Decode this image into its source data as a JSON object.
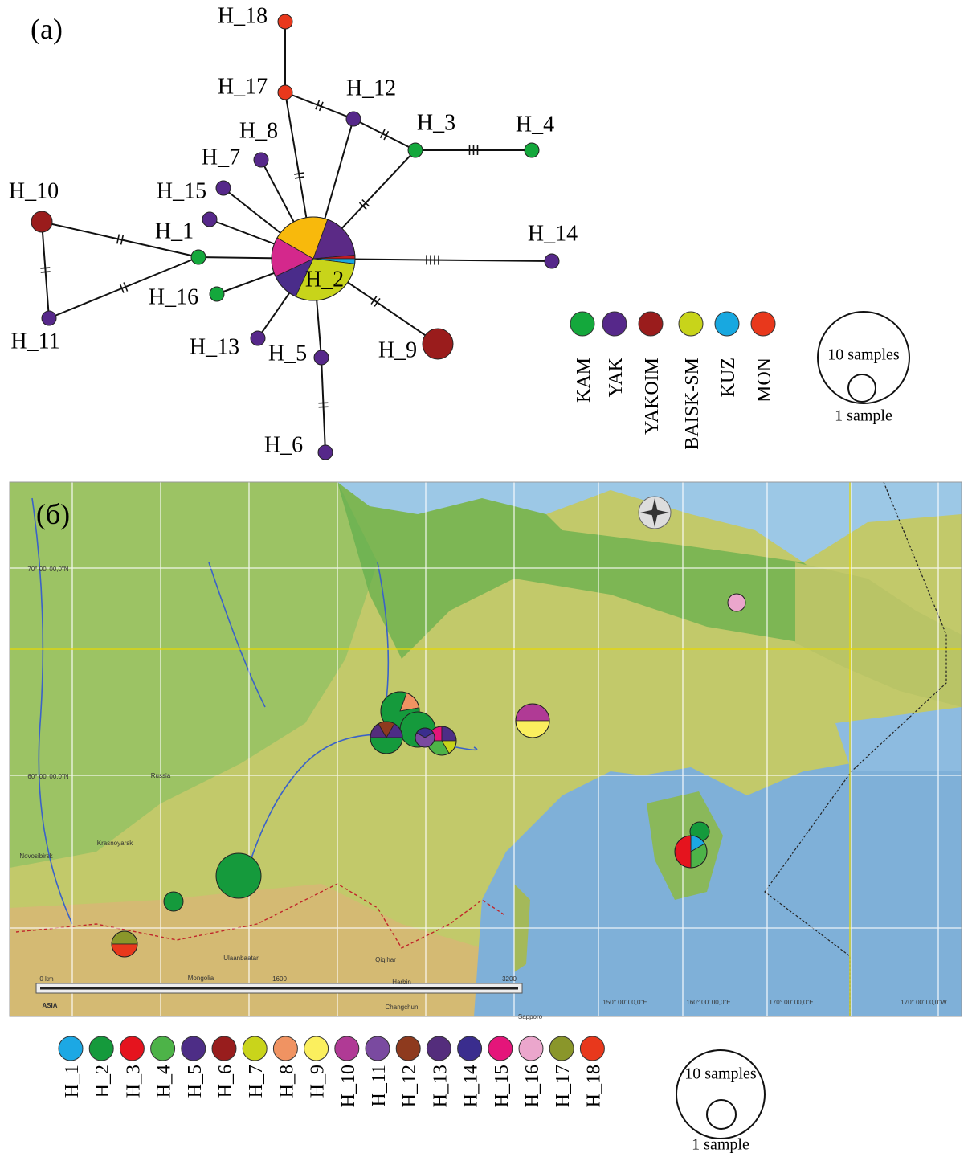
{
  "panel_a": {
    "label": "(a)",
    "nodes": [
      {
        "label": "H_18"
      },
      {
        "label": "H_17"
      },
      {
        "label": "H_12"
      },
      {
        "label": "H_3"
      },
      {
        "label": "H_4"
      },
      {
        "label": "H_8"
      },
      {
        "label": "H_7"
      },
      {
        "label": "H_15"
      },
      {
        "label": "H_10"
      },
      {
        "label": "H_1"
      },
      {
        "label": "H_14"
      },
      {
        "label": "H_2"
      },
      {
        "label": "H_16"
      },
      {
        "label": "H_11"
      },
      {
        "label": "H_13"
      },
      {
        "label": "H_5"
      },
      {
        "label": "H_9"
      },
      {
        "label": "H_6"
      }
    ],
    "legend": [
      "KAM",
      "YAK",
      "YAKOIM",
      "BAISK-SM",
      "KUZ",
      "MON"
    ],
    "size_legend": {
      "large": "10 samples",
      "small": "1 sample"
    }
  },
  "panel_b": {
    "label": "(б)",
    "places": [
      "Russia",
      "Novosibirsk",
      "Krasnoyarsk",
      "Ulaanbaatar",
      "Mongolia",
      "Qiqihar",
      "Harbin",
      "Changchun",
      "Sapporo",
      "ASIA"
    ],
    "coordinates": [
      "70° 00' 00,0\"N",
      "60° 00' 00,0\"N",
      "150° 00' 00,0\"E",
      "160° 00' 00,0\"E",
      "170° 00' 00,0\"E",
      "170° 00' 00,0\"W"
    ],
    "scale": [
      "0 km",
      "1600",
      "3200"
    ],
    "legend": [
      "H_1",
      "H_2",
      "H_3",
      "H_4",
      "H_5",
      "H_6",
      "H_7",
      "H_8",
      "H_9",
      "H_10",
      "H_11",
      "H_12",
      "H_13",
      "H_14",
      "H_15",
      "H_16",
      "H_17",
      "H_18"
    ],
    "size_legend": {
      "large": "10 samples",
      "small": "1 sample"
    }
  }
}
